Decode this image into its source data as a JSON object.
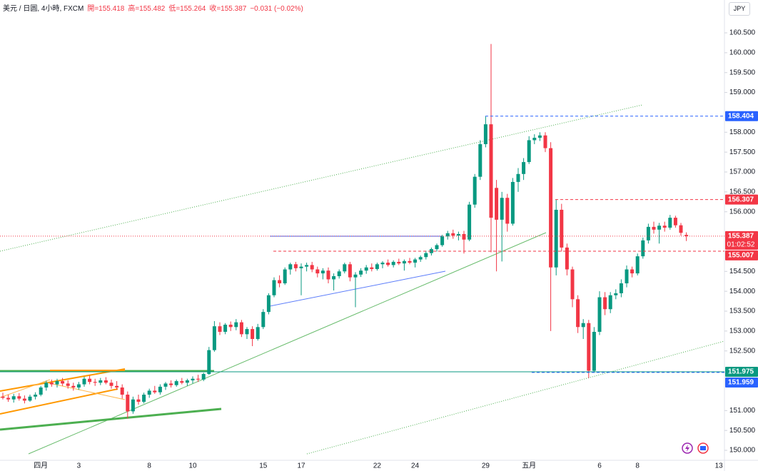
{
  "legend": [
    "美元 / 日圆, 4小時, FXCM",
    "開=155.418",
    "高=155.482",
    "低=155.264",
    "收=155.387",
    "−0.031 (−0.02%)"
  ],
  "currency_button": "JPY",
  "chart_data": {
    "type": "candlestick",
    "categories": [
      null,
      null,
      null,
      null,
      null,
      null,
      null,
      "四月",
      null,
      null,
      null,
      null,
      null,
      null,
      "3",
      null,
      null,
      null,
      null,
      null,
      null,
      null,
      null,
      null,
      null,
      null,
      null,
      "8",
      null,
      null,
      null,
      null,
      null,
      null,
      null,
      "10",
      null,
      null,
      null,
      null,
      null,
      null,
      null,
      null,
      null,
      null,
      null,
      null,
      "15",
      null,
      null,
      null,
      null,
      null,
      null,
      "17",
      null,
      null,
      null,
      null,
      null,
      null,
      null,
      null,
      null,
      null,
      null,
      null,
      null,
      "22",
      null,
      null,
      null,
      null,
      null,
      null,
      "24",
      null,
      null,
      null,
      null,
      null,
      null,
      null,
      null,
      null,
      null,
      null,
      null,
      "29",
      null,
      null,
      null,
      null,
      null,
      null,
      null,
      "五月",
      null,
      null,
      null,
      null,
      null,
      null,
      null,
      null,
      null,
      null,
      null,
      null,
      "6",
      null,
      null,
      null,
      null,
      null,
      null,
      "8",
      null,
      null,
      null,
      null,
      null,
      null,
      null,
      null,
      null,
      null,
      null,
      null,
      null,
      null,
      "13"
    ],
    "ohlc": [
      [
        151.35,
        151.45,
        151.28,
        151.32
      ],
      [
        151.32,
        151.4,
        151.22,
        151.28
      ],
      [
        151.28,
        151.42,
        151.2,
        151.36
      ],
      [
        151.36,
        151.44,
        151.25,
        151.3
      ],
      [
        151.3,
        151.38,
        151.18,
        151.25
      ],
      [
        151.25,
        151.4,
        151.22,
        151.35
      ],
      [
        151.35,
        151.46,
        151.28,
        151.4
      ],
      [
        151.4,
        151.62,
        151.36,
        151.58
      ],
      [
        151.58,
        151.75,
        151.5,
        151.7
      ],
      [
        151.7,
        151.78,
        151.6,
        151.66
      ],
      [
        151.66,
        151.8,
        151.58,
        151.74
      ],
      [
        151.74,
        151.82,
        151.62,
        151.68
      ],
      [
        151.68,
        151.76,
        151.55,
        151.62
      ],
      [
        151.62,
        151.7,
        151.5,
        151.58
      ],
      [
        151.58,
        151.72,
        151.52,
        151.66
      ],
      [
        151.66,
        151.85,
        151.6,
        151.8
      ],
      [
        151.8,
        151.88,
        151.66,
        151.72
      ],
      [
        151.72,
        151.8,
        151.62,
        151.7
      ],
      [
        151.7,
        151.82,
        151.64,
        151.76
      ],
      [
        151.76,
        151.84,
        151.66,
        151.7
      ],
      [
        151.7,
        151.78,
        151.55,
        151.62
      ],
      [
        151.62,
        151.74,
        151.52,
        151.58
      ],
      [
        151.58,
        151.66,
        151.3,
        151.4
      ],
      [
        151.4,
        151.48,
        150.8,
        150.98
      ],
      [
        150.98,
        151.35,
        150.92,
        151.28
      ],
      [
        151.28,
        151.4,
        151.15,
        151.22
      ],
      [
        151.22,
        151.45,
        151.18,
        151.4
      ],
      [
        151.4,
        151.55,
        151.32,
        151.5
      ],
      [
        151.5,
        151.62,
        151.42,
        151.46
      ],
      [
        151.46,
        151.66,
        151.4,
        151.6
      ],
      [
        151.6,
        151.72,
        151.52,
        151.68
      ],
      [
        151.68,
        151.76,
        151.58,
        151.64
      ],
      [
        151.64,
        151.78,
        151.6,
        151.74
      ],
      [
        151.74,
        151.82,
        151.66,
        151.7
      ],
      [
        151.7,
        151.8,
        151.62,
        151.76
      ],
      [
        151.76,
        151.86,
        151.68,
        151.8
      ],
      [
        151.8,
        151.9,
        151.72,
        151.78
      ],
      [
        151.78,
        151.95,
        151.74,
        151.92
      ],
      [
        151.92,
        152.6,
        151.9,
        152.52
      ],
      [
        152.52,
        153.25,
        152.48,
        153.12
      ],
      [
        153.12,
        153.22,
        152.9,
        152.98
      ],
      [
        152.98,
        153.2,
        152.92,
        153.16
      ],
      [
        153.16,
        153.24,
        153.0,
        153.1
      ],
      [
        153.1,
        153.3,
        153.02,
        153.22
      ],
      [
        153.22,
        153.28,
        152.85,
        152.92
      ],
      [
        152.92,
        153.1,
        152.8,
        153.05
      ],
      [
        153.05,
        153.12,
        152.62,
        152.8
      ],
      [
        152.8,
        153.18,
        152.76,
        153.1
      ],
      [
        153.1,
        153.55,
        153.05,
        153.48
      ],
      [
        153.48,
        153.95,
        153.42,
        153.9
      ],
      [
        153.9,
        154.35,
        153.85,
        154.28
      ],
      [
        154.28,
        154.4,
        154.1,
        154.2
      ],
      [
        154.2,
        154.6,
        154.16,
        154.55
      ],
      [
        154.55,
        154.72,
        154.42,
        154.68
      ],
      [
        154.68,
        154.74,
        154.5,
        154.58
      ],
      [
        154.58,
        154.7,
        153.9,
        154.62
      ],
      [
        154.62,
        154.72,
        154.5,
        154.66
      ],
      [
        154.66,
        154.74,
        154.48,
        154.55
      ],
      [
        154.55,
        154.62,
        154.35,
        154.45
      ],
      [
        154.45,
        154.58,
        154.3,
        154.52
      ],
      [
        154.52,
        154.6,
        154.2,
        154.3
      ],
      [
        154.3,
        154.45,
        154.02,
        154.38
      ],
      [
        154.38,
        154.55,
        154.32,
        154.5
      ],
      [
        154.5,
        154.72,
        154.45,
        154.68
      ],
      [
        154.68,
        154.74,
        154.25,
        154.35
      ],
      [
        154.35,
        154.48,
        153.6,
        154.42
      ],
      [
        154.42,
        154.58,
        154.36,
        154.52
      ],
      [
        154.52,
        154.66,
        154.44,
        154.6
      ],
      [
        154.6,
        154.7,
        154.5,
        154.56
      ],
      [
        154.56,
        154.72,
        154.52,
        154.68
      ],
      [
        154.68,
        154.76,
        154.58,
        154.72
      ],
      [
        154.72,
        154.8,
        154.62,
        154.66
      ],
      [
        154.66,
        154.78,
        154.6,
        154.74
      ],
      [
        154.74,
        154.82,
        154.66,
        154.7
      ],
      [
        154.7,
        154.8,
        154.52,
        154.76
      ],
      [
        154.76,
        154.84,
        154.68,
        154.72
      ],
      [
        154.72,
        154.84,
        154.6,
        154.8
      ],
      [
        154.8,
        154.9,
        154.74,
        154.86
      ],
      [
        154.86,
        155.02,
        154.8,
        154.96
      ],
      [
        154.96,
        155.1,
        154.9,
        155.06
      ],
      [
        155.06,
        155.2,
        155.0,
        155.16
      ],
      [
        155.16,
        155.42,
        155.12,
        155.38
      ],
      [
        155.38,
        155.52,
        155.3,
        155.46
      ],
      [
        155.46,
        155.55,
        155.32,
        155.4
      ],
      [
        155.4,
        155.5,
        155.28,
        155.44
      ],
      [
        155.44,
        155.52,
        154.95,
        155.3
      ],
      [
        155.3,
        156.25,
        155.26,
        156.18
      ],
      [
        156.18,
        156.95,
        156.1,
        156.88
      ],
      [
        156.88,
        157.8,
        156.8,
        157.7
      ],
      [
        157.7,
        158.4,
        157.62,
        158.2
      ],
      [
        158.2,
        160.22,
        154.98,
        155.85
      ],
      [
        156.6,
        156.8,
        154.5,
        155.8
      ],
      [
        155.8,
        156.5,
        154.75,
        156.35
      ],
      [
        156.35,
        156.45,
        155.5,
        155.7
      ],
      [
        155.7,
        156.85,
        155.65,
        156.75
      ],
      [
        156.75,
        157.1,
        156.5,
        156.95
      ],
      [
        156.95,
        157.35,
        156.8,
        157.25
      ],
      [
        157.25,
        157.9,
        157.2,
        157.8
      ],
      [
        157.8,
        157.95,
        157.7,
        157.86
      ],
      [
        157.86,
        158.0,
        157.78,
        157.92
      ],
      [
        157.92,
        158.0,
        157.5,
        157.6
      ],
      [
        157.6,
        157.75,
        153.0,
        154.6
      ],
      [
        154.6,
        156.3,
        154.4,
        156.05
      ],
      [
        156.05,
        156.2,
        155.0,
        155.1
      ],
      [
        155.1,
        155.2,
        154.4,
        154.55
      ],
      [
        154.55,
        154.62,
        153.6,
        153.8
      ],
      [
        153.8,
        153.9,
        152.95,
        153.1
      ],
      [
        153.1,
        153.3,
        152.8,
        153.2
      ],
      [
        153.2,
        153.28,
        151.82,
        152.0
      ],
      [
        152.0,
        153.1,
        151.95,
        152.98
      ],
      [
        152.98,
        154.0,
        152.9,
        153.85
      ],
      [
        153.85,
        153.98,
        153.4,
        153.55
      ],
      [
        153.55,
        153.98,
        153.45,
        153.9
      ],
      [
        153.9,
        154.05,
        153.8,
        153.95
      ],
      [
        153.95,
        154.3,
        153.85,
        154.2
      ],
      [
        154.2,
        154.65,
        154.1,
        154.55
      ],
      [
        154.55,
        154.62,
        154.35,
        154.45
      ],
      [
        154.45,
        154.95,
        154.4,
        154.88
      ],
      [
        154.88,
        155.35,
        154.82,
        155.28
      ],
      [
        155.28,
        155.7,
        155.2,
        155.62
      ],
      [
        155.62,
        155.75,
        155.45,
        155.55
      ],
      [
        155.55,
        155.72,
        155.2,
        155.65
      ],
      [
        155.65,
        155.75,
        155.5,
        155.6
      ],
      [
        155.6,
        155.92,
        155.55,
        155.85
      ],
      [
        155.85,
        155.9,
        155.6,
        155.66
      ],
      [
        155.66,
        155.72,
        155.4,
        155.47
      ],
      [
        155.418,
        155.482,
        155.264,
        155.387
      ],
      null,
      null,
      null,
      null,
      null,
      null
    ],
    "up_color": "#089981",
    "down_color": "#f23645",
    "ylim": [
      149.749,
      161.326
    ],
    "yticks": [
      {
        "value": 160.5,
        "label": "160.500"
      },
      {
        "value": 160,
        "label": "160.000"
      },
      {
        "value": 159.5,
        "label": "159.500"
      },
      {
        "value": 159,
        "label": "159.000"
      },
      {
        "value": 158,
        "label": "158.000"
      },
      {
        "value": 157.5,
        "label": "157.500"
      },
      {
        "value": 157,
        "label": "157.000"
      },
      {
        "value": 156.5,
        "label": "156.500"
      },
      {
        "value": 156,
        "label": "156.000"
      },
      {
        "value": 154.5,
        "label": "154.500"
      },
      {
        "value": 154,
        "label": "154.000"
      },
      {
        "value": 153.5,
        "label": "153.500"
      },
      {
        "value": 153,
        "label": "153.000"
      },
      {
        "value": 152.5,
        "label": "152.500"
      },
      {
        "value": 151,
        "label": "151.000"
      },
      {
        "value": 150.5,
        "label": "150.500"
      },
      {
        "value": 150,
        "label": "150.000"
      }
    ],
    "grid": false,
    "price_lines": [
      {
        "value": 158.404,
        "color": "#2962ff",
        "style": "dashed"
      },
      {
        "value": 156.307,
        "color": "#f23645",
        "style": "dashed"
      },
      {
        "value": 155.387,
        "color": "#f23645",
        "style": "dotted",
        "countdown": "01:02:52"
      },
      {
        "value": 155.007,
        "color": "#f23645",
        "style": "dashed"
      },
      {
        "value": 151.975,
        "color": "#089981",
        "style": "solid"
      },
      {
        "value": 151.959,
        "color": "#2962ff",
        "style": "dashed"
      }
    ]
  }
}
